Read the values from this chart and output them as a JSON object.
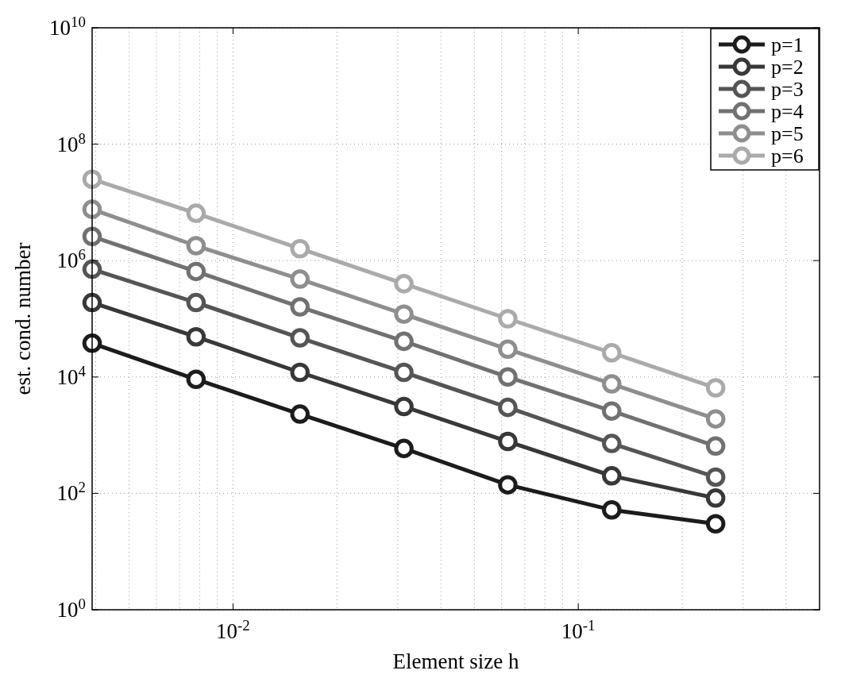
{
  "chart_data": {
    "type": "line",
    "xlabel": "Element size h",
    "ylabel": "est. cond. number",
    "log": "xy",
    "grid": true,
    "legend": "top right",
    "marker": "circle",
    "line_style": "solid",
    "x": [
      0.00390625,
      0.0078125,
      0.015625,
      0.03125,
      0.0625,
      0.125,
      0.25
    ],
    "xlim": [
      0.00390625,
      0.5
    ],
    "xticks": [
      {
        "value": 0.01,
        "label": "10$^{-2}$"
      },
      {
        "value": 0.1,
        "label": "10$^{-1}$"
      }
    ],
    "ylim": [
      1,
      10000000000
    ],
    "yticks": [
      {
        "value": 1,
        "label": "10$^{0}$"
      },
      {
        "value": 100,
        "label": "10$^{2}$"
      },
      {
        "value": 10000,
        "label": "10$^{4}$"
      },
      {
        "value": 1000000,
        "label": "10$^{6}$"
      },
      {
        "value": 100000000,
        "label": "10$^{8}$"
      },
      {
        "value": 10000000000,
        "label": "10$^{10}$"
      }
    ],
    "series": [
      {
        "name": "p=1",
        "color": "#1c1c1c",
        "values": [
          38000,
          9100,
          2300,
          590,
          140,
          52,
          30
        ]
      },
      {
        "name": "p=2",
        "color": "#383838",
        "values": [
          190000,
          49000,
          12000,
          3100,
          780,
          200,
          83
        ]
      },
      {
        "name": "p=3",
        "color": "#555555",
        "values": [
          710000,
          190000,
          47000,
          12000,
          3000,
          720,
          190
        ]
      },
      {
        "name": "p=4",
        "color": "#717171",
        "values": [
          2600000,
          650000,
          160000,
          41000,
          10000,
          2600,
          650
        ]
      },
      {
        "name": "p=5",
        "color": "#8e8e8e",
        "values": [
          7600000,
          1800000,
          480000,
          120000,
          30000,
          7600,
          1900
        ]
      },
      {
        "name": "p=6",
        "color": "#aaaaaa",
        "values": [
          25000000,
          6500000,
          1600000,
          400000,
          100000,
          26000,
          6500
        ]
      }
    ]
  }
}
